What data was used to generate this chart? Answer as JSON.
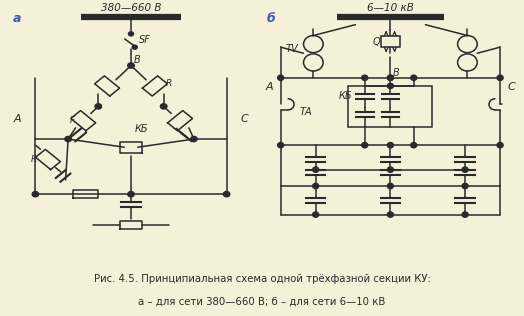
{
  "bg_color": "#f5f0d8",
  "line_color": "#2a2a2a",
  "lw": 1.1,
  "caption_line1": "Рис. 4.5. Принципиальная схема одной трёхфазной секции КУ:",
  "caption_line2": "а – для сети 380—660 В; б – для сети 6—10 кВ",
  "label_a": "а",
  "label_b": "б",
  "voltage_a": "380—660 В",
  "voltage_b": "6—10 кВ"
}
